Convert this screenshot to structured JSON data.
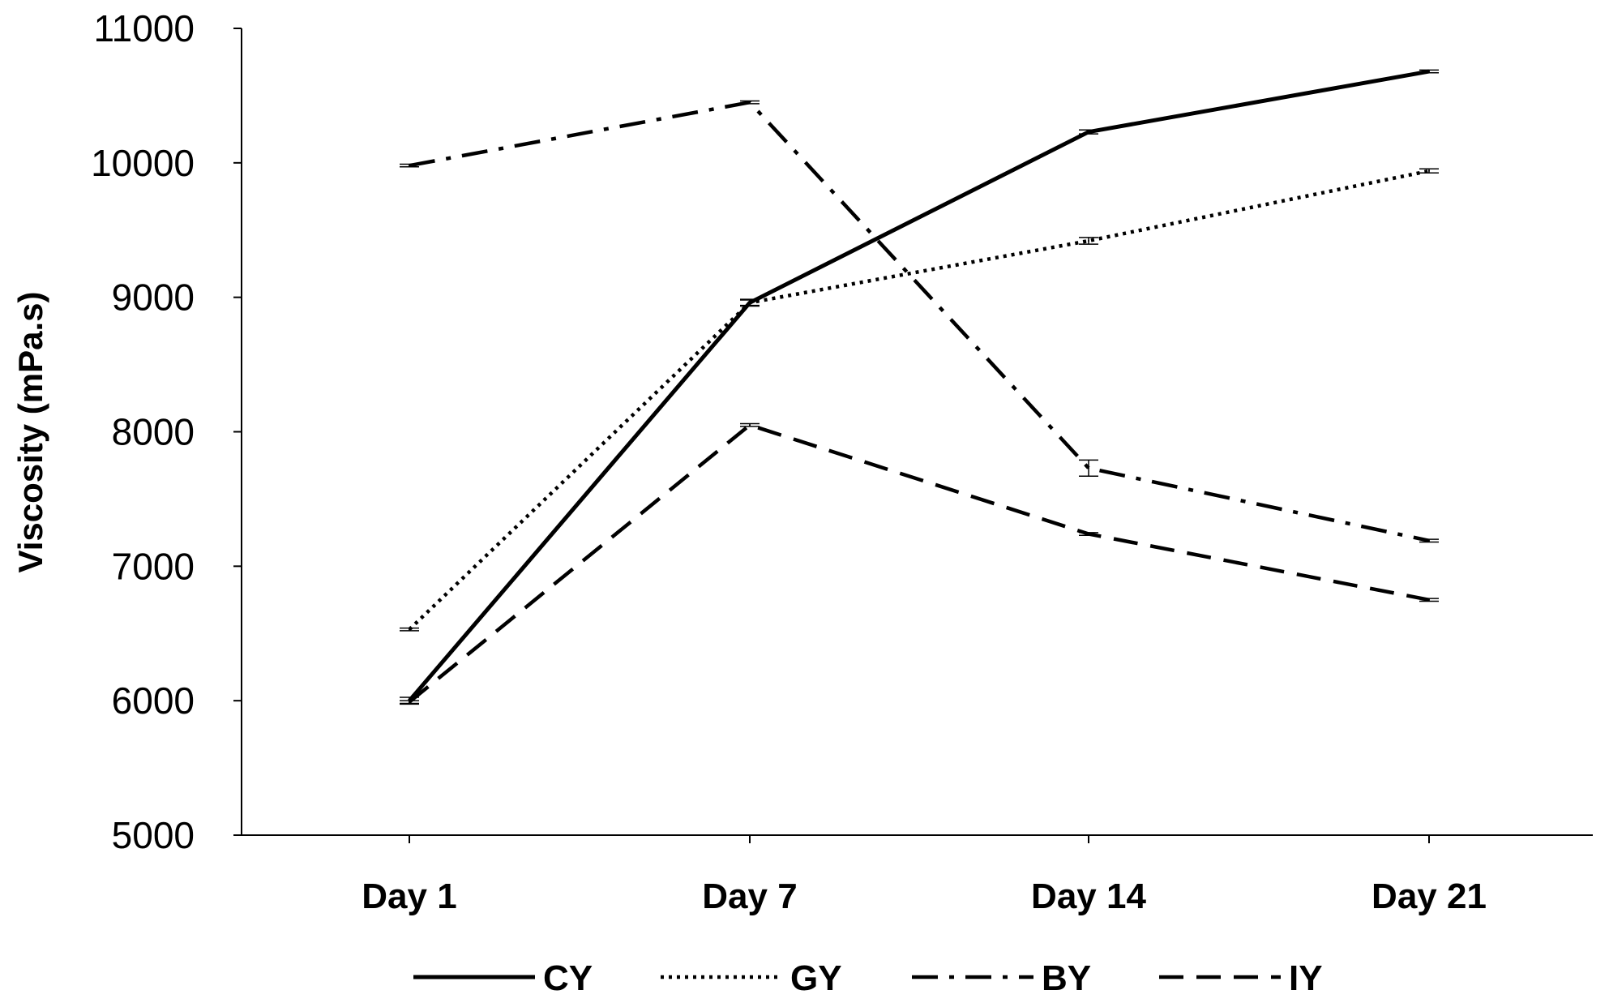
{
  "chart_data": {
    "type": "line",
    "categories": [
      "Day 1",
      "Day 7",
      "Day 14",
      "Day 21"
    ],
    "ylabel": "Viscosity (mPa.s)",
    "xlabel": "",
    "ylim": [
      5000,
      11000
    ],
    "yticks": [
      "5000",
      "6000",
      "7000",
      "8000",
      "9000",
      "10000",
      "11000"
    ],
    "legend_position": "bottom",
    "grid": false,
    "series": [
      {
        "name": "CY",
        "style": "solid",
        "values": [
          6000,
          8960,
          10230,
          10680
        ],
        "errors": [
          25,
          25,
          15,
          10
        ]
      },
      {
        "name": "GY",
        "style": "dotted",
        "values": [
          6530,
          8960,
          9420,
          9940
        ],
        "errors": [
          10,
          20,
          25,
          15
        ]
      },
      {
        "name": "BY",
        "style": "dashdot",
        "values": [
          9980,
          10450,
          7730,
          7190
        ],
        "errors": [
          10,
          10,
          60,
          10
        ]
      },
      {
        "name": "IY",
        "style": "dashed",
        "values": [
          5990,
          8050,
          7240,
          6750
        ],
        "errors": [
          10,
          10,
          10,
          10
        ]
      }
    ]
  }
}
